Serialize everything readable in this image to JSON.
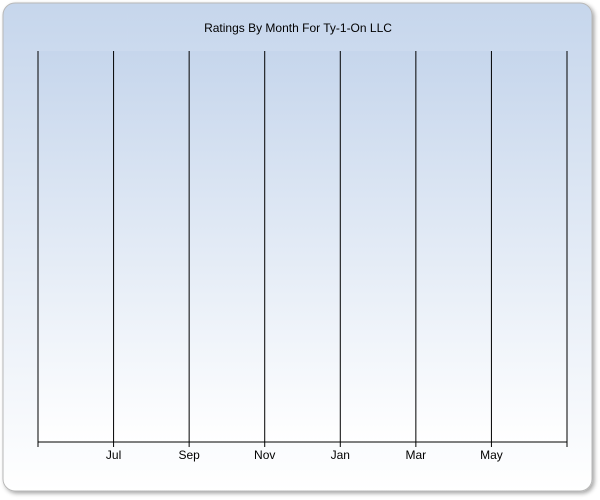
{
  "chart_data": {
    "type": "line",
    "title": "Ratings By Month For Ty-1-On LLC",
    "categories": [
      null,
      "Jul",
      "Sep",
      "Nov",
      "Jan",
      "Mar",
      "May",
      null
    ],
    "grid": true
  }
}
